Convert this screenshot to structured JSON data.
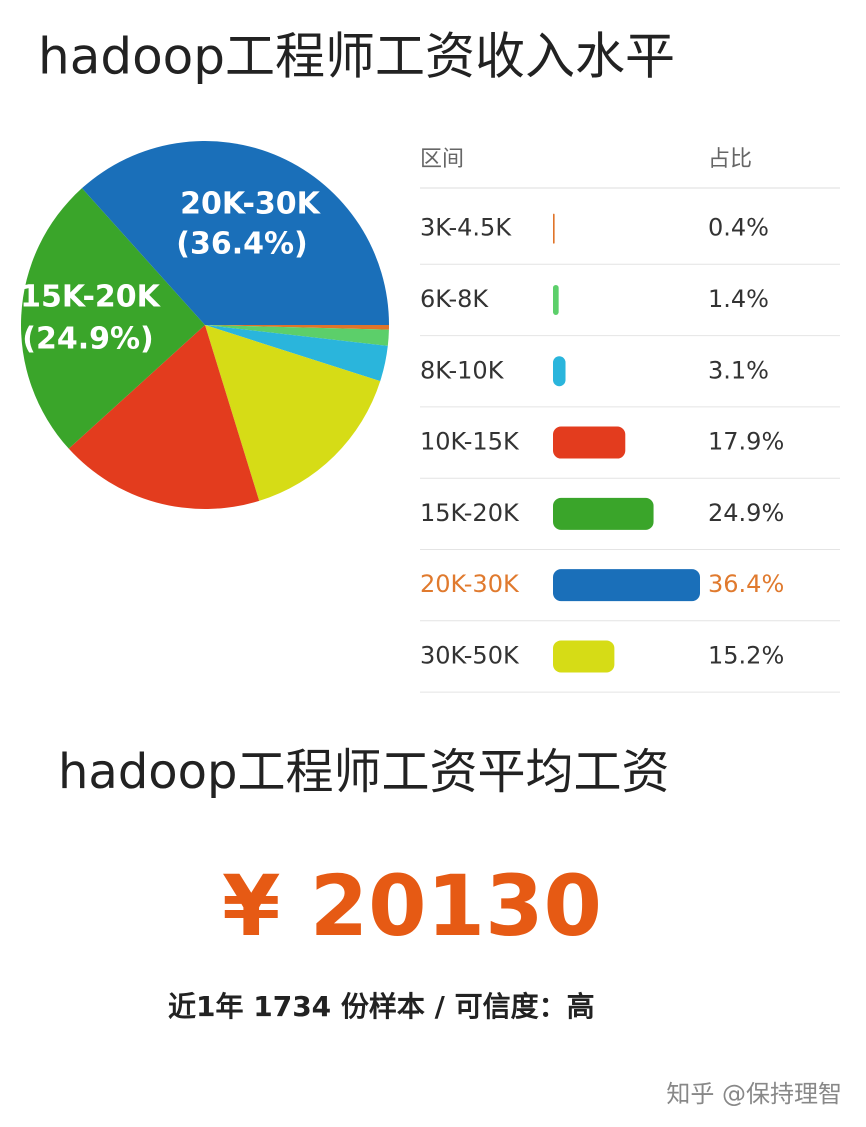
{
  "title": "hadoop工程师工资收入水平",
  "chart_data": [
    {
      "type": "pie",
      "categories": [
        null,
        null,
        null,
        null,
        null,
        "15K-20K",
        "20K-30K"
      ],
      "values": [
        0.4,
        1.4,
        3.1,
        15.2,
        17.9,
        24.9,
        36.4
      ],
      "value_labels": [
        null,
        null,
        null,
        null,
        null,
        "(24.9%)",
        "(36.4%)"
      ],
      "colors": [
        "#e0742a",
        "#5ccf6a",
        "#2ab5dc",
        "#d6dc16",
        "#e33c1e",
        "#3aa52a",
        "#1a6fb9"
      ]
    },
    {
      "type": "bar",
      "column_headers": [
        "区间",
        "占比"
      ],
      "categories": [
        "3K-4.5K",
        "6K-8K",
        "8K-10K",
        "10K-15K",
        "15K-20K",
        "20K-30K",
        "30K-50K"
      ],
      "values": [
        0.4,
        1.4,
        3.1,
        17.9,
        24.9,
        36.4,
        15.2
      ],
      "value_labels": [
        "0.4%",
        "1.4%",
        "3.1%",
        "17.9%",
        "24.9%",
        "36.4%",
        "15.2%"
      ],
      "colors": [
        "#e0742a",
        "#5ccf6a",
        "#2ab5dc",
        "#e33c1e",
        "#3aa52a",
        "#1a6fb9",
        "#d6dc16"
      ],
      "highlight": 5
    }
  ],
  "subtitle": "hadoop工程师工资平均工资",
  "average": "¥ 20130",
  "footnote": "近1年 1734 份样本 / 可信度：高",
  "watermark": "知乎 @保持理智"
}
